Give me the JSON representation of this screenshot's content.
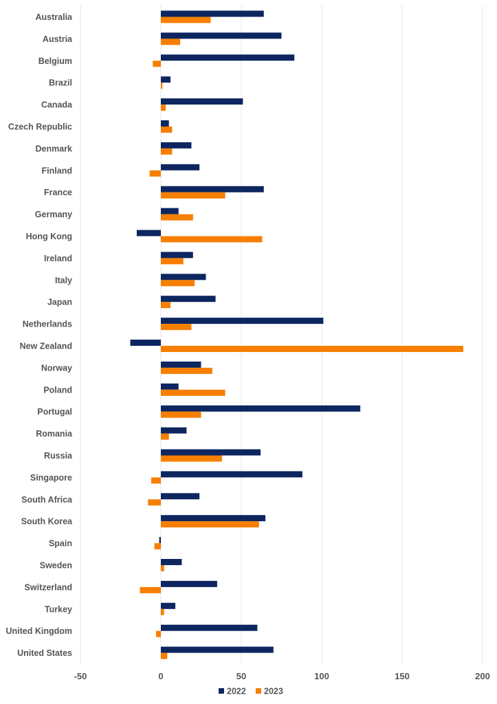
{
  "chart_data": {
    "type": "bar",
    "orientation": "horizontal",
    "categories": [
      "Australia",
      "Austria",
      "Belgium",
      "Brazil",
      "Canada",
      "Czech Republic",
      "Denmark",
      "Finland",
      "France",
      "Germany",
      "Hong Kong",
      "Ireland",
      "Italy",
      "Japan",
      "Netherlands",
      "New Zealand",
      "Norway",
      "Poland",
      "Portugal",
      "Romania",
      "Russia",
      "Singapore",
      "South Africa",
      "South Korea",
      "Spain",
      "Sweden",
      "Switzerland",
      "Turkey",
      "United Kingdom",
      "United States"
    ],
    "series": [
      {
        "name": "2022",
        "color": "#0d2660",
        "values": [
          64,
          75,
          83,
          6,
          51,
          5,
          19,
          24,
          64,
          11,
          -15,
          20,
          28,
          34,
          101,
          -19,
          25,
          11,
          124,
          16,
          62,
          88,
          24,
          65,
          -1,
          13,
          35,
          9,
          60,
          70
        ]
      },
      {
        "name": "2023",
        "color": "#f77f00",
        "values": [
          31,
          12,
          -5,
          1,
          3,
          7,
          7,
          -7,
          40,
          20,
          63,
          14,
          21,
          6,
          19,
          188,
          32,
          40,
          25,
          5,
          38,
          -6,
          -8,
          61,
          -4,
          2,
          -13,
          2,
          -3,
          4
        ]
      }
    ],
    "xlim": [
      -50,
      200
    ],
    "xticks": [
      -50,
      0,
      50,
      100,
      150,
      200
    ],
    "title": "",
    "xlabel": "",
    "ylabel": "",
    "grid": true,
    "legend_position": "bottom-center"
  }
}
